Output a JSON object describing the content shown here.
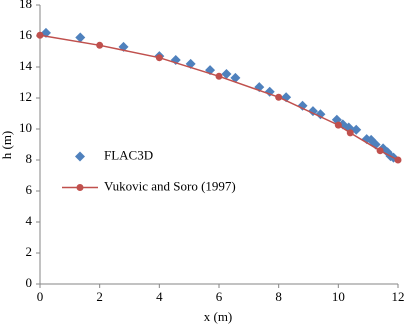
{
  "chart_data": {
    "type": "scatter",
    "x_label": "x (m)",
    "y_label": "h (m)",
    "xlim": [
      0,
      12
    ],
    "xticks": [
      0,
      2,
      4,
      6,
      8,
      10,
      12
    ],
    "ylim": [
      0,
      18
    ],
    "yticks": [
      0,
      2,
      4,
      6,
      8,
      10,
      12,
      14,
      16,
      18
    ],
    "legend_position": "center left",
    "series": [
      {
        "name": "FLAC3D",
        "color": "#4f81bd",
        "marker": "diamond",
        "line": false,
        "x": [
          0.2,
          1.35,
          2.8,
          4.0,
          4.55,
          5.05,
          5.7,
          6.25,
          6.55,
          7.35,
          7.7,
          8.25,
          8.8,
          9.15,
          9.4,
          9.95,
          10.15,
          10.35,
          10.6,
          10.95,
          11.1,
          11.25,
          11.5,
          11.65,
          11.75,
          11.85
        ],
        "values": [
          16.2,
          15.9,
          15.3,
          14.7,
          14.45,
          14.2,
          13.8,
          13.55,
          13.3,
          12.7,
          12.4,
          12.05,
          11.5,
          11.15,
          10.95,
          10.6,
          10.3,
          10.1,
          9.95,
          9.35,
          9.3,
          9.0,
          8.75,
          8.5,
          8.25,
          8.15
        ]
      },
      {
        "name": "Vukovic and Soro (1997)",
        "color": "#c0504d",
        "marker": "circle",
        "line": true,
        "x": [
          0,
          2,
          4,
          6,
          8,
          10,
          10.4,
          11.4,
          12
        ],
        "values": [
          16.05,
          15.4,
          14.6,
          13.4,
          12.05,
          10.25,
          9.75,
          8.6,
          8.0
        ]
      }
    ]
  }
}
